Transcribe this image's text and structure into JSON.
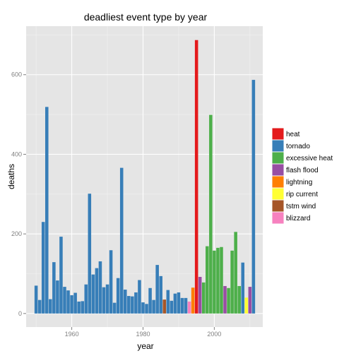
{
  "chart_data": {
    "type": "bar",
    "title": "deadliest event type by year",
    "xlabel": "year",
    "ylabel": "deaths",
    "xlim": [
      1947.2,
      2013.6
    ],
    "ylim": [
      -34,
      722
    ],
    "x_ticks": [
      1960,
      1980,
      2000
    ],
    "y_ticks": [
      0,
      200,
      400,
      600
    ],
    "grid": true,
    "legend_position": "right",
    "legend": [
      {
        "key": "heat",
        "label": "heat",
        "color": "#E41A1C"
      },
      {
        "key": "tornado",
        "label": "tornado",
        "color": "#377EB8"
      },
      {
        "key": "excessive heat",
        "label": "excessive heat",
        "color": "#4DAF4A"
      },
      {
        "key": "flash flood",
        "label": "flash flood",
        "color": "#984EA3"
      },
      {
        "key": "lightning",
        "label": "lightning",
        "color": "#FF7F00"
      },
      {
        "key": "rip current",
        "label": "rip current",
        "color": "#FFFF33"
      },
      {
        "key": "tstm wind",
        "label": "tstm wind",
        "color": "#A65628"
      },
      {
        "key": "blizzard",
        "label": "blizzard",
        "color": "#F781BF"
      }
    ],
    "bars": [
      {
        "year": 1950,
        "deaths": 70,
        "type": "tornado"
      },
      {
        "year": 1951,
        "deaths": 34,
        "type": "tornado"
      },
      {
        "year": 1952,
        "deaths": 230,
        "type": "tornado"
      },
      {
        "year": 1953,
        "deaths": 519,
        "type": "tornado"
      },
      {
        "year": 1954,
        "deaths": 36,
        "type": "tornado"
      },
      {
        "year": 1955,
        "deaths": 129,
        "type": "tornado"
      },
      {
        "year": 1956,
        "deaths": 83,
        "type": "tornado"
      },
      {
        "year": 1957,
        "deaths": 193,
        "type": "tornado"
      },
      {
        "year": 1958,
        "deaths": 67,
        "type": "tornado"
      },
      {
        "year": 1959,
        "deaths": 58,
        "type": "tornado"
      },
      {
        "year": 1960,
        "deaths": 46,
        "type": "tornado"
      },
      {
        "year": 1961,
        "deaths": 52,
        "type": "tornado"
      },
      {
        "year": 1962,
        "deaths": 30,
        "type": "tornado"
      },
      {
        "year": 1963,
        "deaths": 31,
        "type": "tornado"
      },
      {
        "year": 1964,
        "deaths": 73,
        "type": "tornado"
      },
      {
        "year": 1965,
        "deaths": 301,
        "type": "tornado"
      },
      {
        "year": 1966,
        "deaths": 98,
        "type": "tornado"
      },
      {
        "year": 1967,
        "deaths": 114,
        "type": "tornado"
      },
      {
        "year": 1968,
        "deaths": 131,
        "type": "tornado"
      },
      {
        "year": 1969,
        "deaths": 66,
        "type": "tornado"
      },
      {
        "year": 1970,
        "deaths": 73,
        "type": "tornado"
      },
      {
        "year": 1971,
        "deaths": 159,
        "type": "tornado"
      },
      {
        "year": 1972,
        "deaths": 27,
        "type": "tornado"
      },
      {
        "year": 1973,
        "deaths": 89,
        "type": "tornado"
      },
      {
        "year": 1974,
        "deaths": 366,
        "type": "tornado"
      },
      {
        "year": 1975,
        "deaths": 60,
        "type": "tornado"
      },
      {
        "year": 1976,
        "deaths": 44,
        "type": "tornado"
      },
      {
        "year": 1977,
        "deaths": 43,
        "type": "tornado"
      },
      {
        "year": 1978,
        "deaths": 53,
        "type": "tornado"
      },
      {
        "year": 1979,
        "deaths": 84,
        "type": "tornado"
      },
      {
        "year": 1980,
        "deaths": 28,
        "type": "tornado"
      },
      {
        "year": 1981,
        "deaths": 24,
        "type": "tornado"
      },
      {
        "year": 1982,
        "deaths": 64,
        "type": "tornado"
      },
      {
        "year": 1983,
        "deaths": 34,
        "type": "tornado"
      },
      {
        "year": 1984,
        "deaths": 122,
        "type": "tornado"
      },
      {
        "year": 1985,
        "deaths": 94,
        "type": "tornado"
      },
      {
        "year": 1986,
        "deaths": 35,
        "type": "tstm wind"
      },
      {
        "year": 1987,
        "deaths": 59,
        "type": "tornado"
      },
      {
        "year": 1988,
        "deaths": 32,
        "type": "tornado"
      },
      {
        "year": 1989,
        "deaths": 50,
        "type": "tornado"
      },
      {
        "year": 1990,
        "deaths": 53,
        "type": "tornado"
      },
      {
        "year": 1991,
        "deaths": 39,
        "type": "tornado"
      },
      {
        "year": 1992,
        "deaths": 39,
        "type": "tornado"
      },
      {
        "year": 1993,
        "deaths": 30,
        "type": "blizzard"
      },
      {
        "year": 1994,
        "deaths": 65,
        "type": "lightning"
      },
      {
        "year": 1995,
        "deaths": 687,
        "type": "heat"
      },
      {
        "year": 1996,
        "deaths": 92,
        "type": "flash flood"
      },
      {
        "year": 1997,
        "deaths": 78,
        "type": "excessive heat"
      },
      {
        "year": 1998,
        "deaths": 169,
        "type": "excessive heat"
      },
      {
        "year": 1999,
        "deaths": 499,
        "type": "excessive heat"
      },
      {
        "year": 2000,
        "deaths": 158,
        "type": "excessive heat"
      },
      {
        "year": 2001,
        "deaths": 165,
        "type": "excessive heat"
      },
      {
        "year": 2002,
        "deaths": 167,
        "type": "excessive heat"
      },
      {
        "year": 2003,
        "deaths": 69,
        "type": "flash flood"
      },
      {
        "year": 2004,
        "deaths": 64,
        "type": "excessive heat"
      },
      {
        "year": 2005,
        "deaths": 158,
        "type": "excessive heat"
      },
      {
        "year": 2006,
        "deaths": 205,
        "type": "excessive heat"
      },
      {
        "year": 2007,
        "deaths": 69,
        "type": "excessive heat"
      },
      {
        "year": 2008,
        "deaths": 128,
        "type": "tornado"
      },
      {
        "year": 2009,
        "deaths": 40,
        "type": "rip current"
      },
      {
        "year": 2010,
        "deaths": 67,
        "type": "flash flood"
      },
      {
        "year": 2011,
        "deaths": 587,
        "type": "tornado"
      }
    ]
  }
}
